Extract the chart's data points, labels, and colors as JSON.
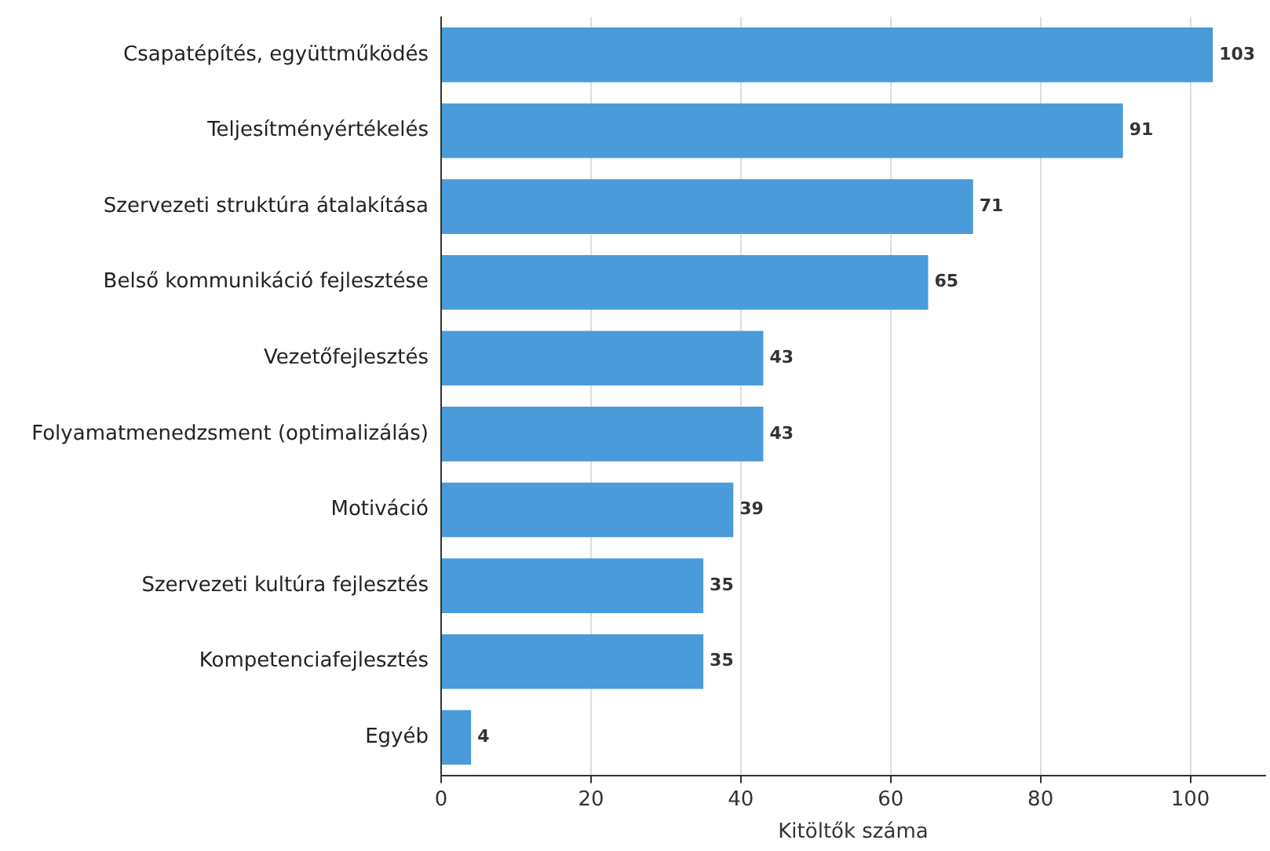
{
  "chart_data": {
    "type": "bar",
    "orientation": "horizontal",
    "xlabel": "Kitöltők száma",
    "categories": [
      "Csapatépítés, együttműködés",
      "Teljesítményértékelés",
      "Szervezeti struktúra átalakítása",
      "Belső kommunikáció fejlesztése",
      "Vezetőfejlesztés",
      "Folyamatmenedzsment (optimalizálás)",
      "Motiváció",
      "Szervezeti kultúra fejlesztés",
      "Kompetenciafejlesztés",
      "Egyéb"
    ],
    "values": [
      103,
      91,
      71,
      65,
      43,
      43,
      39,
      35,
      35,
      4
    ],
    "color": "#4a9bd9",
    "xlim": [
      0,
      110
    ],
    "xticks": [
      0,
      20,
      40,
      60,
      80,
      100
    ],
    "grid": "x",
    "data_labels": true,
    "legend": false
  }
}
